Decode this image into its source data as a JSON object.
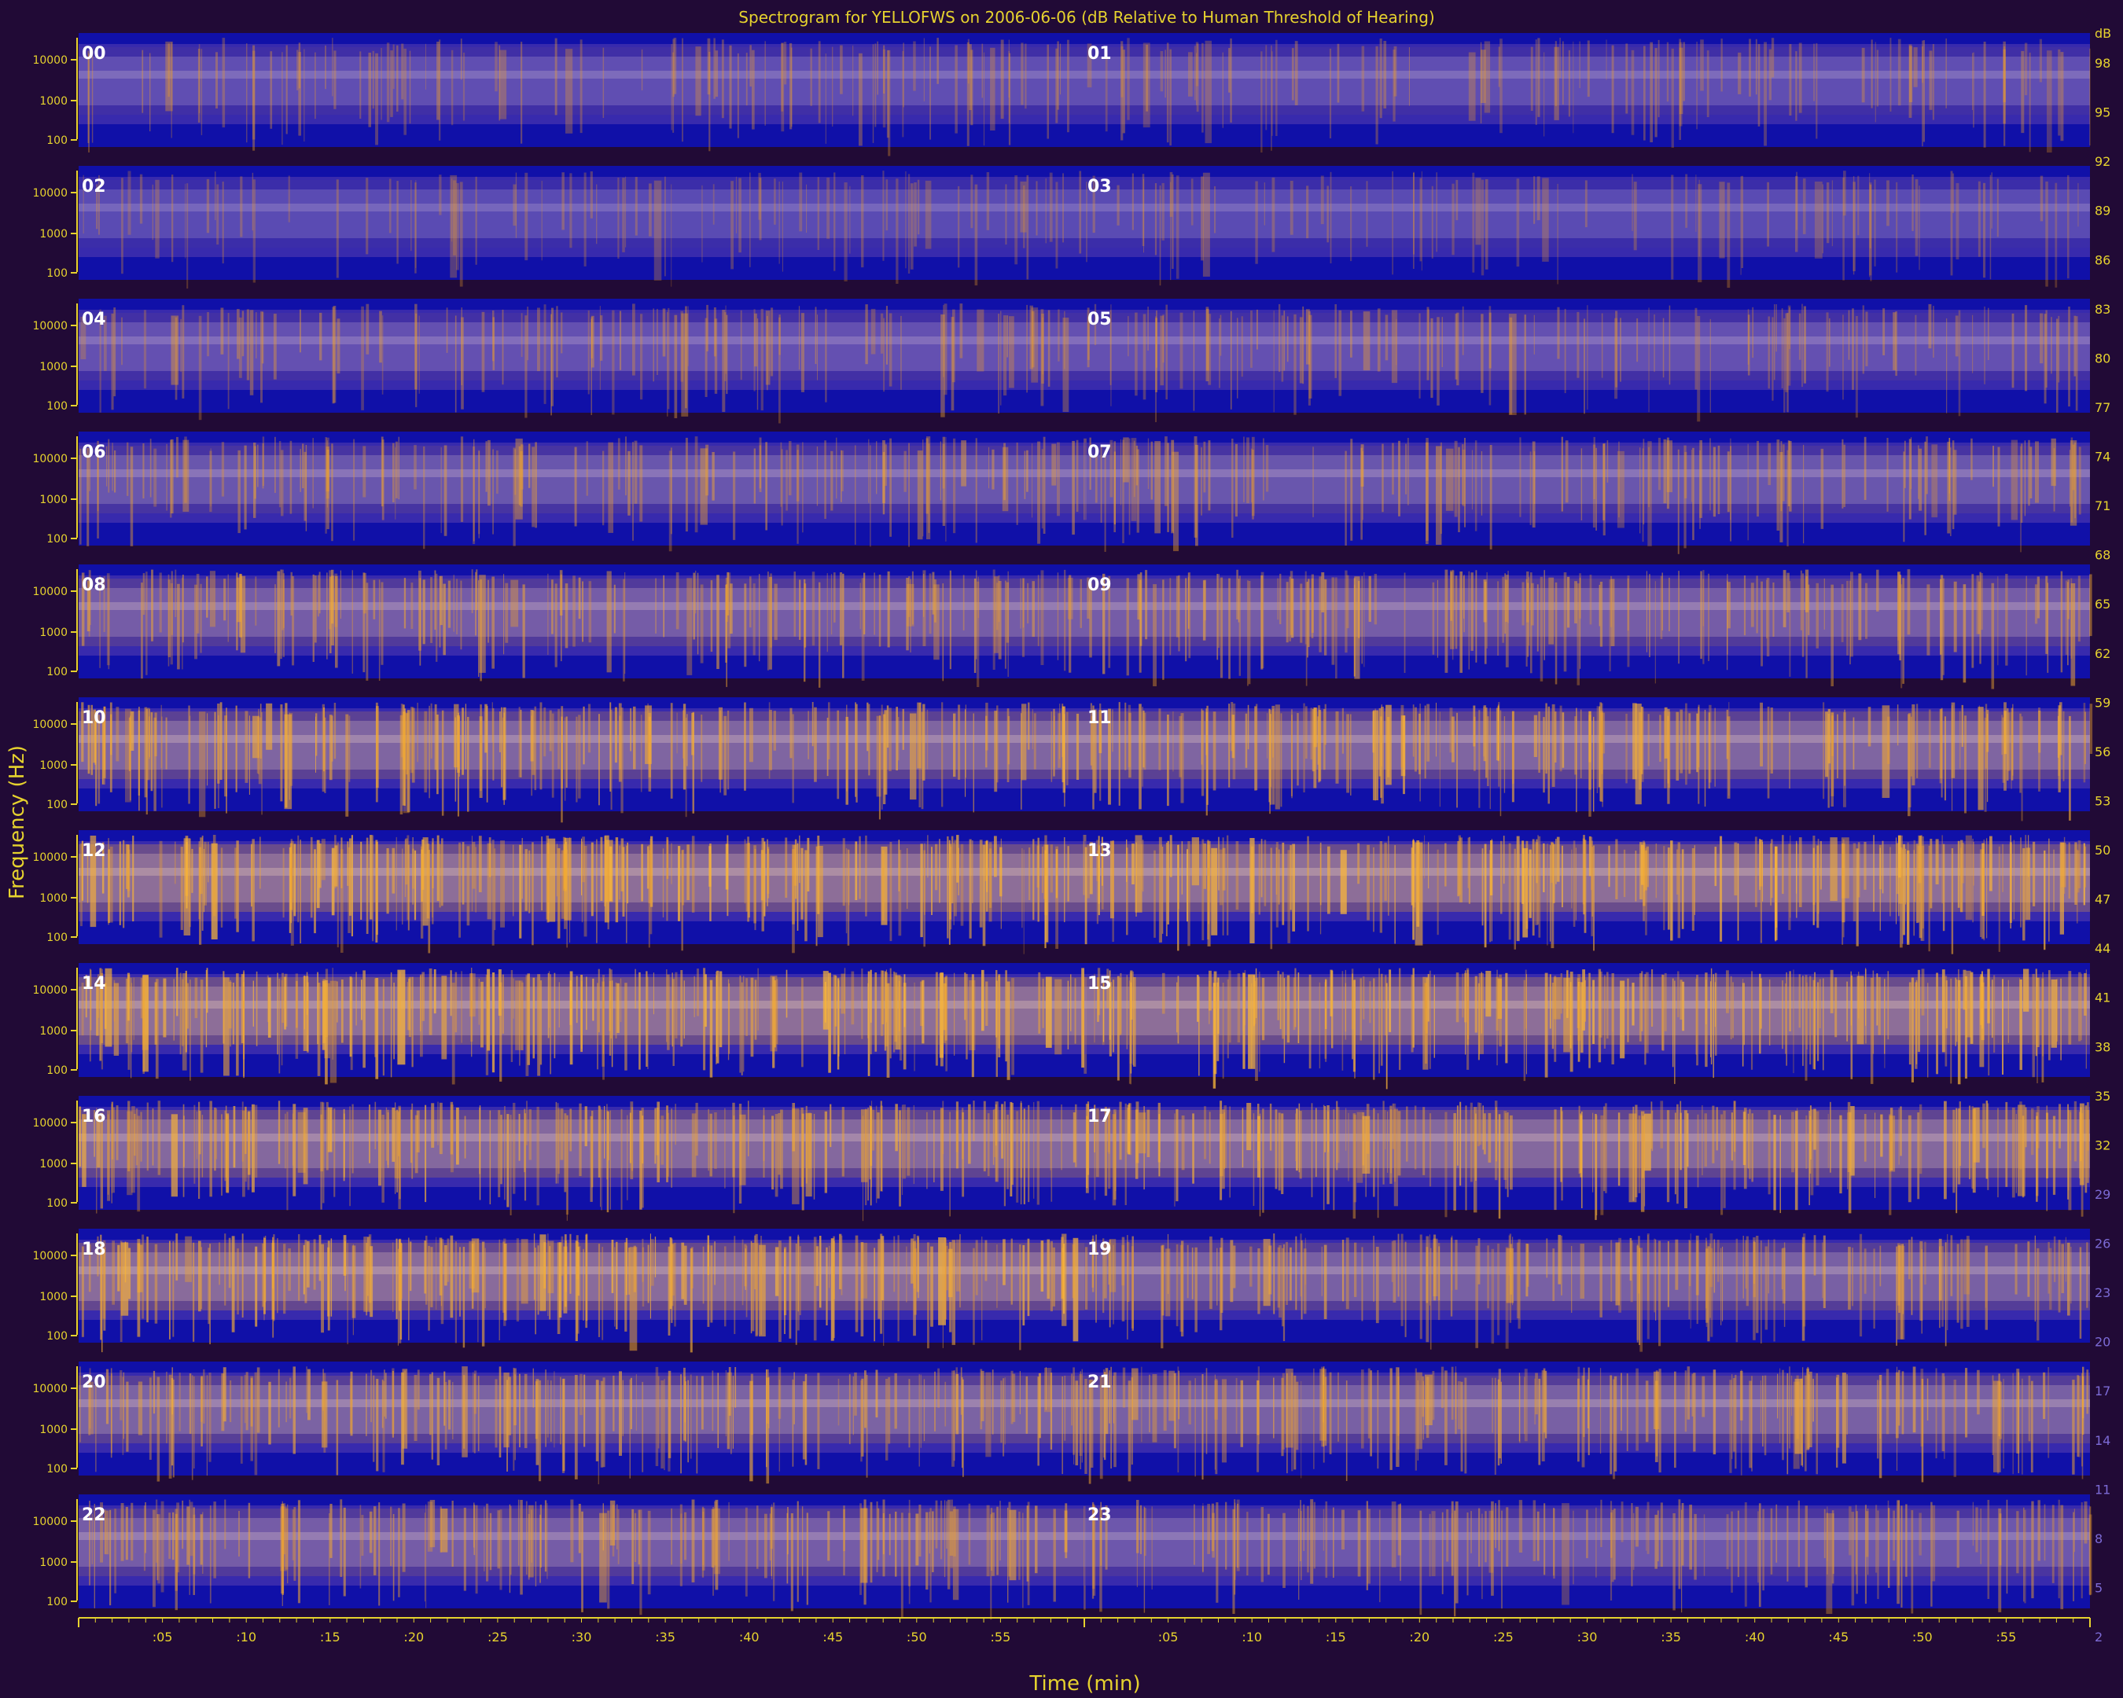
{
  "chart_data": {
    "type": "heatmap",
    "title": "Spectrogram for YELLOFWS on 2006-06-06 (dB Relative to Human Threshold of Hearing)",
    "xlabel": "Time (min)",
    "ylabel": "Frequency (Hz)",
    "colorbar": {
      "unit_label": "dB",
      "ticks": [
        98,
        95,
        92,
        89,
        86,
        83,
        80,
        77,
        74,
        71,
        68,
        65,
        62,
        59,
        56,
        53,
        50,
        47,
        44,
        41,
        38,
        35,
        32,
        29,
        26,
        23,
        20,
        17,
        14,
        11,
        8,
        5,
        2
      ],
      "range": [
        0,
        100
      ],
      "colors": [
        "#4b1c6e",
        "#6e4fa0",
        "#8a7acb",
        "#a6a0d6",
        "#c8b27e",
        "#e7a84a",
        "#f5a431",
        "#fbbd36",
        "#ffd13e"
      ]
    },
    "y_scale": "log",
    "y_ticks": [
      "10000",
      "1000",
      "100"
    ],
    "x_ticks": [
      ":05",
      ":10",
      ":15",
      ":20",
      ":25",
      ":30",
      ":35",
      ":40",
      ":45",
      ":50",
      ":55"
    ],
    "panels": [
      {
        "label": "00",
        "intensity": 0.25
      },
      {
        "label": "01",
        "intensity": 0.25
      },
      {
        "label": "02",
        "intensity": 0.15
      },
      {
        "label": "03",
        "intensity": 0.15
      },
      {
        "label": "04",
        "intensity": 0.3
      },
      {
        "label": "05",
        "intensity": 0.3
      },
      {
        "label": "06",
        "intensity": 0.4
      },
      {
        "label": "07",
        "intensity": 0.4
      },
      {
        "label": "08",
        "intensity": 0.55
      },
      {
        "label": "09",
        "intensity": 0.55
      },
      {
        "label": "10",
        "intensity": 0.7
      },
      {
        "label": "11",
        "intensity": 0.7
      },
      {
        "label": "12",
        "intensity": 0.85
      },
      {
        "label": "13",
        "intensity": 0.85
      },
      {
        "label": "14",
        "intensity": 0.85
      },
      {
        "label": "15",
        "intensity": 0.85
      },
      {
        "label": "16",
        "intensity": 0.75
      },
      {
        "label": "17",
        "intensity": 0.75
      },
      {
        "label": "18",
        "intensity": 0.8
      },
      {
        "label": "19",
        "intensity": 0.6
      },
      {
        "label": "20",
        "intensity": 0.65
      },
      {
        "label": "21",
        "intensity": 0.6
      },
      {
        "label": "22",
        "intensity": 0.55
      },
      {
        "label": "23",
        "intensity": 0.45
      }
    ],
    "grid": false
  },
  "colors": {
    "background": "#210a36",
    "band": "#1010a8",
    "text": "#e6d22e",
    "panel_label": "#ffffff",
    "axis": "#e6d22e"
  }
}
